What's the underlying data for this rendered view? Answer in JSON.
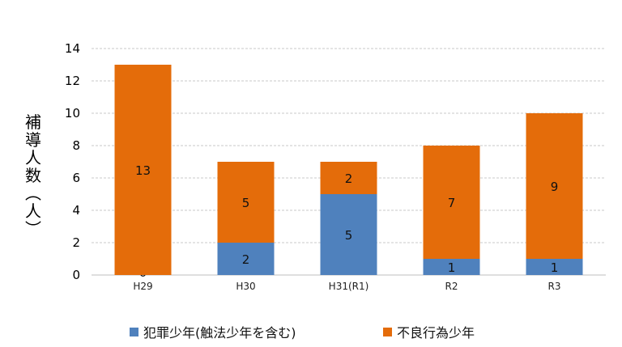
{
  "chart_data": {
    "type": "bar",
    "stacked": true,
    "categories": [
      "H29",
      "H30",
      "H31(R1)",
      "R2",
      "R3"
    ],
    "series": [
      {
        "name": "犯罪少年(触法少年を含む)",
        "values": [
          0,
          2,
          5,
          1,
          1
        ],
        "color": "#4f81bd"
      },
      {
        "name": "不良行為少年",
        "values": [
          13,
          5,
          2,
          7,
          9
        ],
        "color": "#e46c0a"
      }
    ],
    "title": "",
    "xlabel": "",
    "ylabel": "補導人数(人)",
    "ylim": [
      0,
      14
    ],
    "yticks": [
      0,
      2,
      4,
      6,
      8,
      10,
      12,
      14
    ],
    "grid": true,
    "legend_position": "bottom"
  }
}
